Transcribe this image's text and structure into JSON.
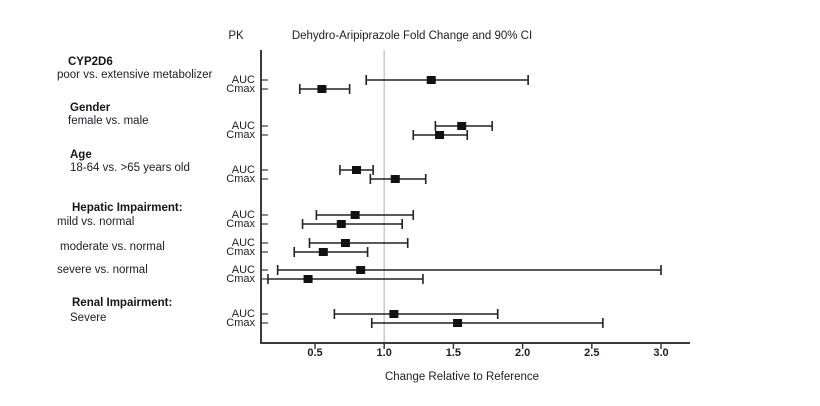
{
  "chart_data": {
    "type": "forest",
    "title": "Dehydro-Aripiprazole Fold Change and 90% CI",
    "column_header": "PK",
    "xlabel": "Change Relative to Reference",
    "x_ticks": [
      0.5,
      1.0,
      1.5,
      2.0,
      2.5,
      3.0
    ],
    "xlim": [
      0.1,
      3.2
    ],
    "reference_line_x": 1.0,
    "grid": false,
    "groups": [
      {
        "heading": "CYP2D6",
        "subheading": "poor vs. extensive metabolizer",
        "rows": [
          {
            "pk": "AUC",
            "estimate": 1.34,
            "ci_low": 0.87,
            "ci_high": 2.04
          },
          {
            "pk": "Cmax",
            "estimate": 0.55,
            "ci_low": 0.39,
            "ci_high": 0.75
          }
        ]
      },
      {
        "heading": "Gender",
        "subheading": "female vs. male",
        "rows": [
          {
            "pk": "AUC",
            "estimate": 1.56,
            "ci_low": 1.37,
            "ci_high": 1.78
          },
          {
            "pk": "Cmax",
            "estimate": 1.4,
            "ci_low": 1.21,
            "ci_high": 1.6
          }
        ]
      },
      {
        "heading": "Age",
        "subheading": "18-64 vs. >65 years old",
        "rows": [
          {
            "pk": "AUC",
            "estimate": 0.8,
            "ci_low": 0.68,
            "ci_high": 0.92
          },
          {
            "pk": "Cmax",
            "estimate": 1.08,
            "ci_low": 0.9,
            "ci_high": 1.3
          }
        ]
      },
      {
        "heading": "Hepatic Impairment:",
        "subheading": "mild vs. normal",
        "rows": [
          {
            "pk": "AUC",
            "estimate": 0.79,
            "ci_low": 0.51,
            "ci_high": 1.21
          },
          {
            "pk": "Cmax",
            "estimate": 0.69,
            "ci_low": 0.41,
            "ci_high": 1.13
          }
        ]
      },
      {
        "heading": "",
        "subheading": "moderate vs. normal",
        "rows": [
          {
            "pk": "AUC",
            "estimate": 0.72,
            "ci_low": 0.46,
            "ci_high": 1.17
          },
          {
            "pk": "Cmax",
            "estimate": 0.56,
            "ci_low": 0.35,
            "ci_high": 0.88
          }
        ]
      },
      {
        "heading": "",
        "subheading": "severe vs. normal",
        "rows": [
          {
            "pk": "AUC",
            "estimate": 0.83,
            "ci_low": 0.23,
            "ci_high": 3.0
          },
          {
            "pk": "Cmax",
            "estimate": 0.45,
            "ci_low": 0.16,
            "ci_high": 1.28
          }
        ]
      },
      {
        "heading": "Renal Impairment:",
        "subheading": "Severe",
        "rows": [
          {
            "pk": "AUC",
            "estimate": 1.07,
            "ci_low": 0.64,
            "ci_high": 1.82
          },
          {
            "pk": "Cmax",
            "estimate": 1.53,
            "ci_low": 0.91,
            "ci_high": 2.58
          }
        ]
      }
    ],
    "colors": {
      "marker": "#111111",
      "ci_line": "#222222",
      "axis": "#3a3a3a",
      "reference_line": "#c9c9c9",
      "text": "#1d1d26"
    }
  }
}
